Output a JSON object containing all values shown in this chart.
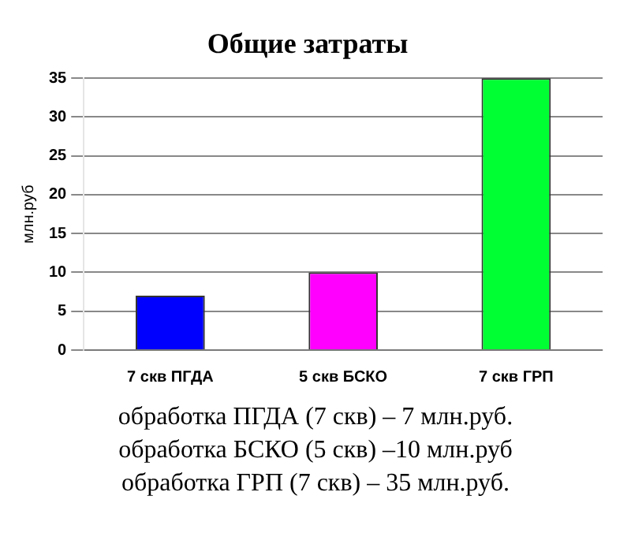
{
  "chart_data": {
    "type": "bar",
    "title": "Общие затраты",
    "ylabel": "млн.руб",
    "categories": [
      "7 скв ПГДА",
      "5 скв БСКО",
      "7 скв ГРП"
    ],
    "values": [
      7,
      10,
      35
    ],
    "colors": [
      "#0000ff",
      "#ff00ff",
      "#00ff33"
    ],
    "ylim": [
      0,
      35
    ],
    "yticks": [
      0,
      5,
      10,
      15,
      20,
      25,
      30,
      35
    ],
    "grid": "y",
    "annotations": [
      "обработка ПГДА (7 скв) – 7 млн.руб.",
      "обработка БСКО (5 скв) –10 млн.руб",
      "обработка ГРП (7 скв) – 35 млн.руб."
    ]
  }
}
